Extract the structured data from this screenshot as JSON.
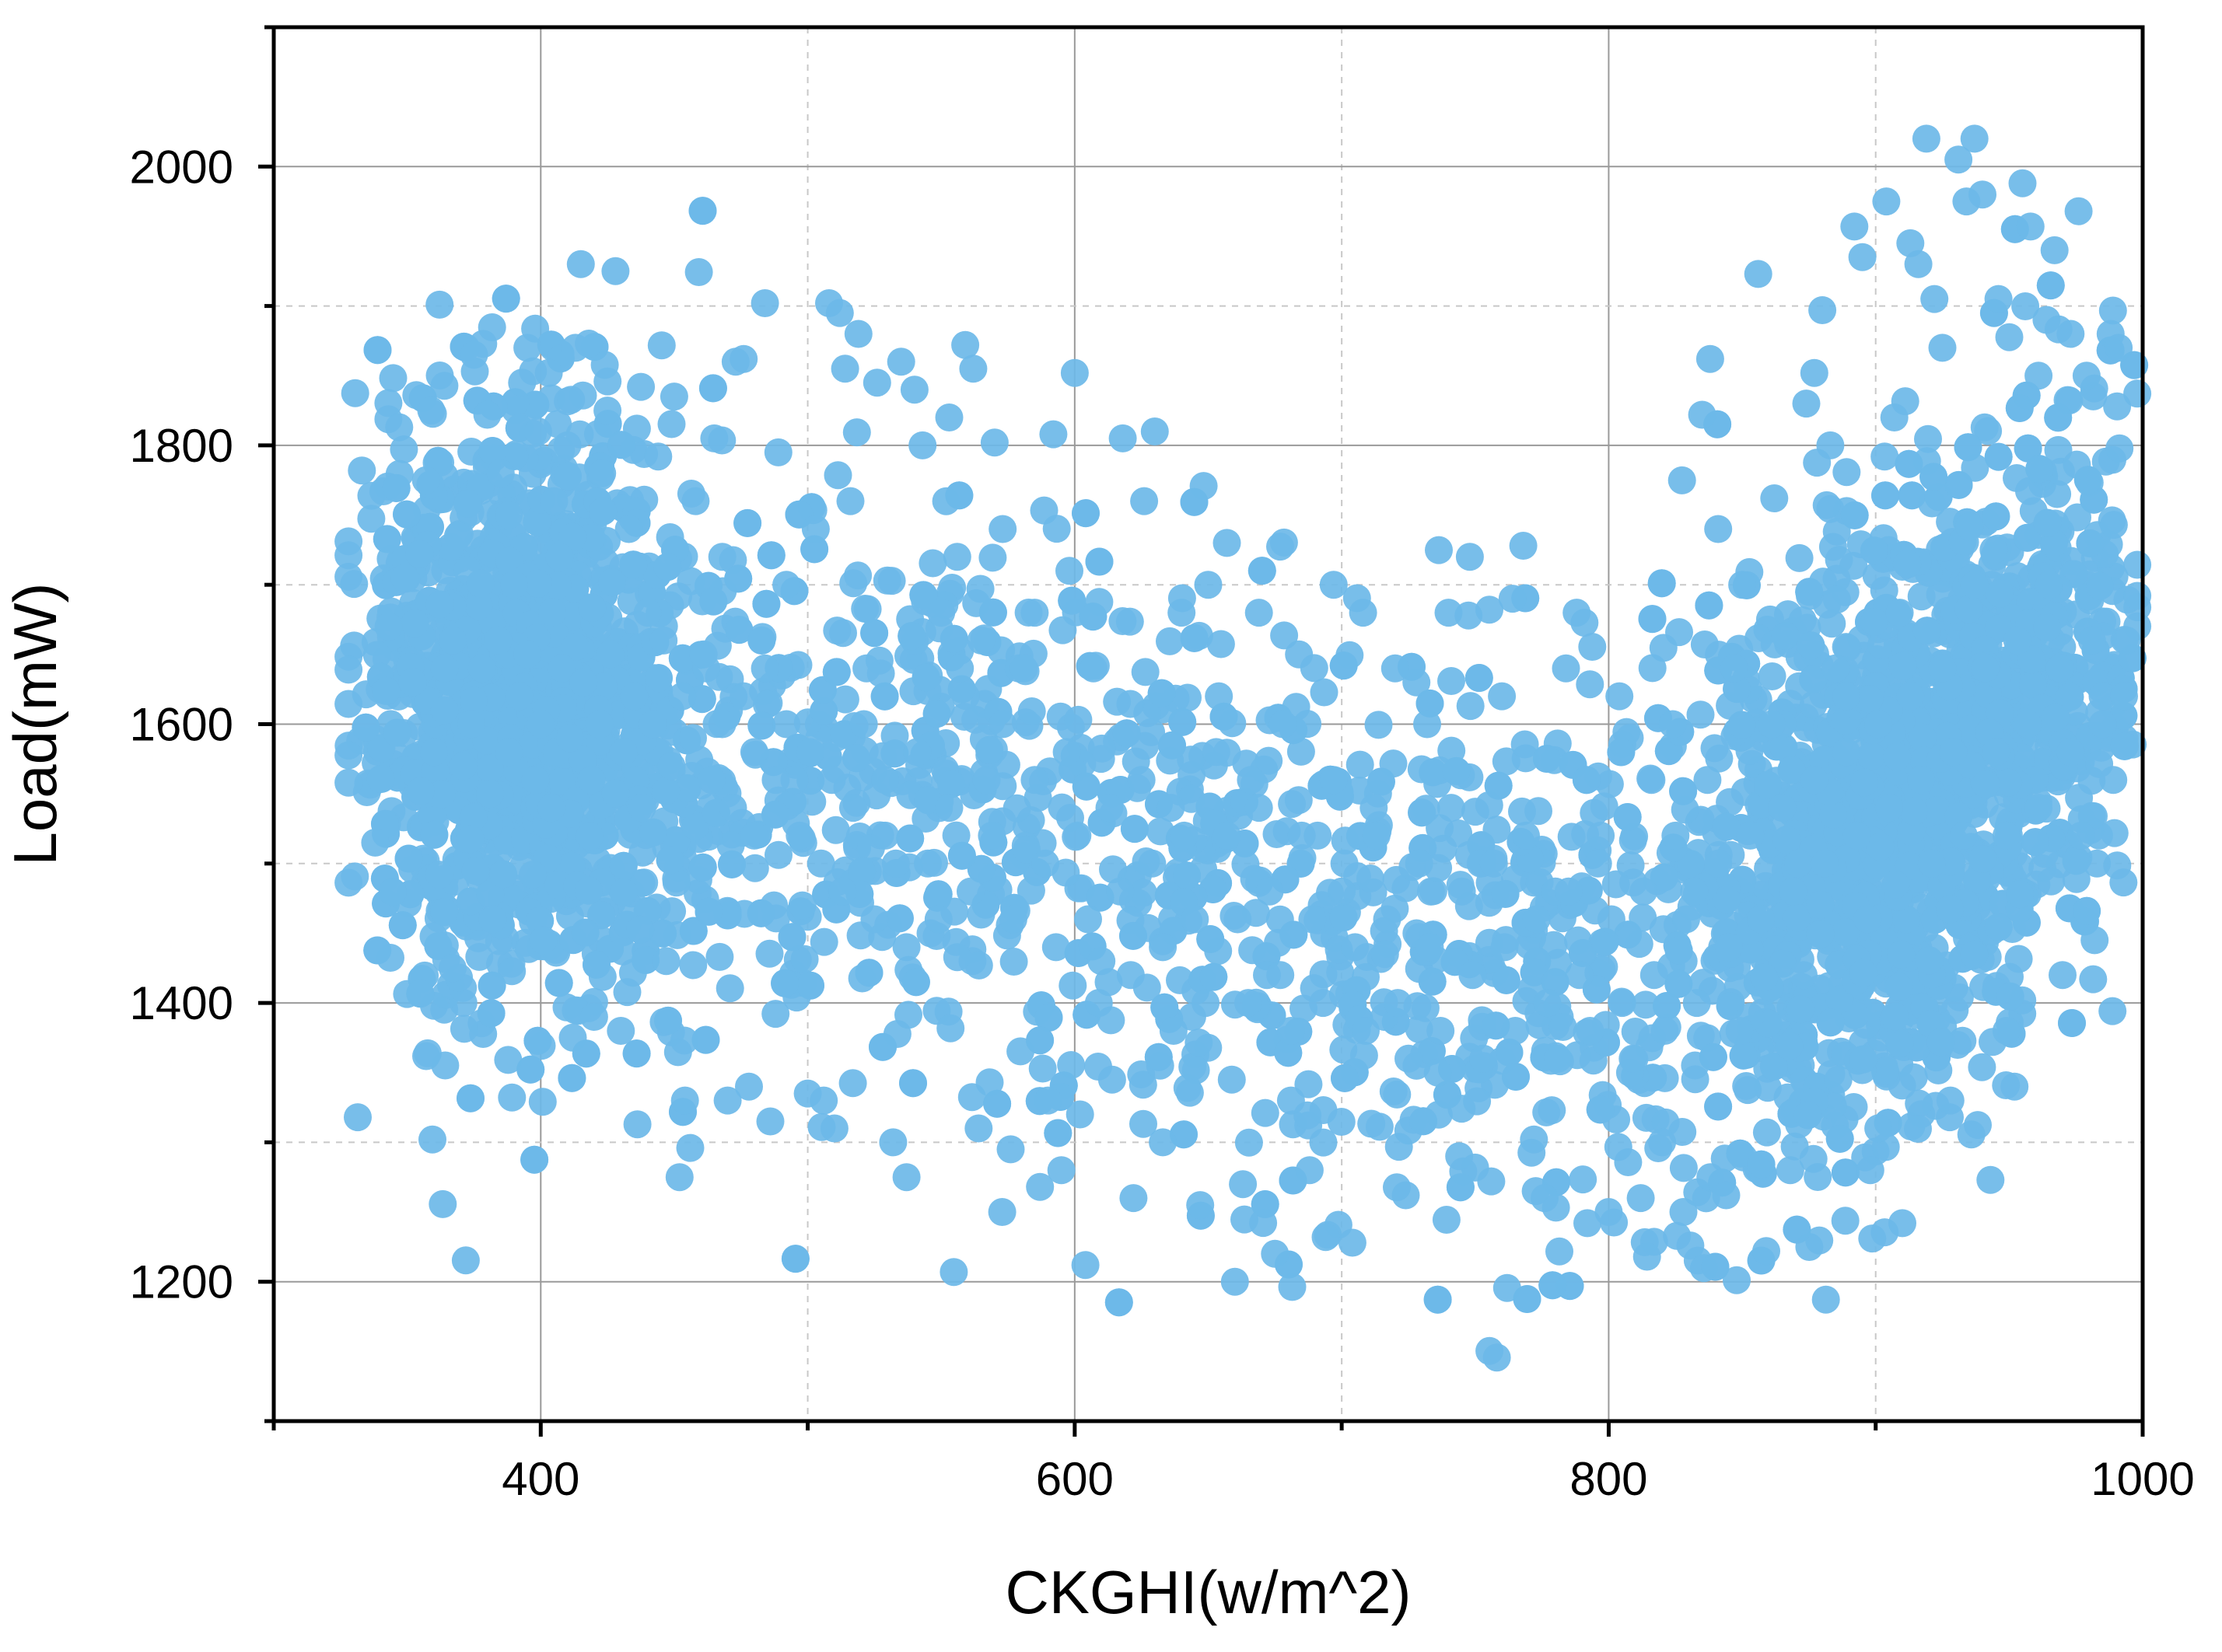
{
  "chart_data": {
    "type": "scatter",
    "title": "",
    "xlabel": "CKGHI(w/m^2)",
    "ylabel": "Load(mW)",
    "xlim": [
      300,
      1000
    ],
    "ylim": [
      1100,
      2100
    ],
    "x_ticks": [
      400,
      600,
      800,
      1000
    ],
    "x_tick_labels": [
      "400",
      "600",
      "800",
      "1000"
    ],
    "x_minor_ticks": [
      300,
      500,
      700,
      900
    ],
    "y_ticks": [
      1200,
      1400,
      1600,
      1800,
      2000
    ],
    "y_tick_labels": [
      "1200",
      "1400",
      "1600",
      "1800",
      "2000"
    ],
    "y_minor_ticks": [
      1300,
      1500,
      1700,
      1900
    ],
    "grid": true,
    "legend": "none",
    "marker_color": "#6cb8e8",
    "approx_point_count": 5000,
    "distribution": "U-shaped: dense cluster near x 380-420 at load ~1600, dip to ~1400-1500 between x 650-800, dense cluster near x 880-960 at load ~1500-1650",
    "points": [
      [
        328,
        1558
      ],
      [
        333,
        1782
      ],
      [
        338,
        1515
      ],
      [
        343,
        1670
      ],
      [
        347,
        1813
      ],
      [
        349,
        1705
      ],
      [
        352,
        1630
      ],
      [
        355,
        1552
      ],
      [
        357,
        1775
      ],
      [
        359,
        1825
      ],
      [
        362,
        1492
      ],
      [
        364,
        1640
      ],
      [
        367,
        1425
      ],
      [
        369,
        1735
      ],
      [
        372,
        1870
      ],
      [
        375,
        1865
      ],
      [
        377,
        1433
      ],
      [
        380,
        1822
      ],
      [
        382,
        1460
      ],
      [
        385,
        1780
      ],
      [
        388,
        1750
      ],
      [
        390,
        1700
      ],
      [
        393,
        1845
      ],
      [
        395,
        1870
      ],
      [
        397,
        1492
      ],
      [
        399,
        1810
      ],
      [
        401,
        1445
      ],
      [
        403,
        1852
      ],
      [
        405,
        1760
      ],
      [
        407,
        1720
      ],
      [
        410,
        1800
      ],
      [
        413,
        1870
      ],
      [
        415,
        1930
      ],
      [
        418,
        1873
      ],
      [
        420,
        1390
      ],
      [
        423,
        1780
      ],
      [
        425,
        1825
      ],
      [
        428,
        1925
      ],
      [
        430,
        1380
      ],
      [
        433,
        1740
      ],
      [
        436,
        1812
      ],
      [
        440,
        1680
      ],
      [
        444,
        1792
      ],
      [
        447,
        1430
      ],
      [
        450,
        1835
      ],
      [
        452,
        1275
      ],
      [
        454,
        1330
      ],
      [
        456,
        1296
      ],
      [
        458,
        1760
      ],
      [
        462,
        1640
      ],
      [
        465,
        1805
      ],
      [
        468,
        1720
      ],
      [
        470,
        1330
      ],
      [
        473,
        1860
      ],
      [
        476,
        1862
      ],
      [
        478,
        1340
      ],
      [
        480,
        1520
      ],
      [
        484,
        1902
      ],
      [
        486,
        1315
      ],
      [
        489,
        1795
      ],
      [
        492,
        1700
      ],
      [
        495,
        1560
      ],
      [
        498,
        1470
      ],
      [
        500,
        1335
      ],
      [
        503,
        1740
      ],
      [
        506,
        1330
      ],
      [
        508,
        1902
      ],
      [
        510,
        1310
      ],
      [
        512,
        1895
      ],
      [
        514,
        1855
      ],
      [
        516,
        1760
      ],
      [
        519,
        1880
      ],
      [
        522,
        1640
      ],
      [
        526,
        1845
      ],
      [
        529,
        1520
      ],
      [
        532,
        1300
      ],
      [
        535,
        1860
      ],
      [
        537,
        1275
      ],
      [
        540,
        1840
      ],
      [
        543,
        1800
      ],
      [
        546,
        1450
      ],
      [
        550,
        1680
      ],
      [
        553,
        1820
      ],
      [
        556,
        1720
      ],
      [
        559,
        1872
      ],
      [
        562,
        1855
      ],
      [
        564,
        1310
      ],
      [
        567,
        1560
      ],
      [
        570,
        1802
      ],
      [
        573,
        1740
      ],
      [
        576,
        1295
      ],
      [
        579,
        1640
      ],
      [
        582,
        1510
      ],
      [
        585,
        1680
      ],
      [
        587,
        1268
      ],
      [
        590,
        1330
      ],
      [
        592,
        1808
      ],
      [
        595,
        1280
      ],
      [
        598,
        1710
      ],
      [
        600,
        1852
      ],
      [
        602,
        1320
      ],
      [
        604,
        1212
      ],
      [
        607,
        1640
      ],
      [
        610,
        1430
      ],
      [
        614,
        1345
      ],
      [
        618,
        1805
      ],
      [
        622,
        1260
      ],
      [
        626,
        1760
      ],
      [
        630,
        1810
      ],
      [
        633,
        1300
      ],
      [
        636,
        1540
      ],
      [
        640,
        1680
      ],
      [
        644,
        1390
      ],
      [
        647,
        1255
      ],
      [
        650,
        1700
      ],
      [
        654,
        1620
      ],
      [
        657,
        1730
      ],
      [
        660,
        1200
      ],
      [
        663,
        1270
      ],
      [
        666,
        1560
      ],
      [
        669,
        1680
      ],
      [
        672,
        1420
      ],
      [
        675,
        1220
      ],
      [
        678,
        1600
      ],
      [
        681,
        1330
      ],
      [
        684,
        1650
      ],
      [
        688,
        1280
      ],
      [
        691,
        1520
      ],
      [
        694,
        1232
      ],
      [
        697,
        1700
      ],
      [
        700,
        1480
      ],
      [
        704,
        1228
      ],
      [
        708,
        1680
      ],
      [
        712,
        1540
      ],
      [
        716,
        1390
      ],
      [
        720,
        1640
      ],
      [
        724,
        1262
      ],
      [
        728,
        1450
      ],
      [
        732,
        1600
      ],
      [
        736,
        1350
      ],
      [
        740,
        1680
      ],
      [
        744,
        1290
      ],
      [
        748,
        1720
      ],
      [
        752,
        1500
      ],
      [
        756,
        1272
      ],
      [
        760,
        1620
      ],
      [
        764,
        1690
      ],
      [
        768,
        1728
      ],
      [
        772,
        1302
      ],
      [
        776,
        1260
      ],
      [
        780,
        1480
      ],
      [
        784,
        1640
      ],
      [
        788,
        1680
      ],
      [
        792,
        1242
      ],
      [
        796,
        1500
      ],
      [
        800,
        1250
      ],
      [
        804,
        1620
      ],
      [
        808,
        1350
      ],
      [
        812,
        1260
      ],
      [
        816,
        1560
      ],
      [
        820,
        1300
      ],
      [
        824,
        1600
      ],
      [
        828,
        1250
      ],
      [
        832,
        1480
      ],
      [
        835,
        1822
      ],
      [
        838,
        1862
      ],
      [
        841,
        1740
      ],
      [
        844,
        1262
      ],
      [
        847,
        1640
      ],
      [
        850,
        1700
      ],
      [
        853,
        1390
      ],
      [
        856,
        1923
      ],
      [
        859,
        1222
      ],
      [
        862,
        1762
      ],
      [
        865,
        1600
      ],
      [
        868,
        1280
      ],
      [
        871,
        1500
      ],
      [
        874,
        1830
      ],
      [
        877,
        1852
      ],
      [
        880,
        1897
      ],
      [
        883,
        1800
      ],
      [
        886,
        1345
      ],
      [
        889,
        1620
      ],
      [
        892,
        1957
      ],
      [
        895,
        1935
      ],
      [
        898,
        1280
      ],
      [
        901,
        1310
      ],
      [
        904,
        1975
      ],
      [
        907,
        1820
      ],
      [
        910,
        1242
      ],
      [
        913,
        1945
      ],
      [
        916,
        1930
      ],
      [
        919,
        2020
      ],
      [
        922,
        1905
      ],
      [
        925,
        1870
      ],
      [
        928,
        1330
      ],
      [
        931,
        2005
      ],
      [
        934,
        1975
      ],
      [
        937,
        2020
      ],
      [
        940,
        1980
      ],
      [
        943,
        1273
      ],
      [
        946,
        1905
      ],
      [
        949,
        1380
      ],
      [
        952,
        1340
      ],
      [
        955,
        1988
      ],
      [
        958,
        1957
      ],
      [
        961,
        1850
      ],
      [
        964,
        1890
      ],
      [
        967,
        1940
      ],
      [
        970,
        1420
      ],
      [
        973,
        1880
      ],
      [
        976,
        1968
      ],
      [
        979,
        1850
      ],
      [
        982,
        1445
      ],
      [
        985,
        1620
      ],
      [
        988,
        1880
      ],
      [
        991,
        1870
      ],
      [
        994,
        1660
      ],
      [
        998,
        1692
      ],
      [
        395,
        1650
      ],
      [
        398,
        1560
      ],
      [
        402,
        1610
      ],
      [
        406,
        1580
      ],
      [
        408,
        1640
      ],
      [
        411,
        1590
      ],
      [
        400,
        1600
      ],
      [
        404,
        1540
      ],
      [
        392,
        1620
      ],
      [
        388,
        1580
      ],
      [
        384,
        1660
      ],
      [
        381,
        1550
      ],
      [
        378,
        1640
      ],
      [
        374,
        1600
      ],
      [
        371,
        1570
      ],
      [
        367,
        1660
      ],
      [
        364,
        1610
      ],
      [
        360,
        1580
      ],
      [
        416,
        1630
      ],
      [
        419,
        1560
      ],
      [
        422,
        1600
      ],
      [
        426,
        1650
      ],
      [
        431,
        1580
      ],
      [
        435,
        1620
      ],
      [
        438,
        1540
      ],
      [
        442,
        1600
      ],
      [
        446,
        1660
      ],
      [
        449,
        1570
      ],
      [
        453,
        1620
      ],
      [
        457,
        1590
      ],
      [
        461,
        1650
      ],
      [
        464,
        1560
      ],
      [
        468,
        1600
      ],
      [
        472,
        1540
      ],
      [
        476,
        1620
      ],
      [
        480,
        1580
      ],
      [
        484,
        1640
      ],
      [
        488,
        1560
      ],
      [
        492,
        1600
      ],
      [
        497,
        1520
      ],
      [
        501,
        1580
      ],
      [
        505,
        1500
      ],
      [
        509,
        1560
      ],
      [
        513,
        1480
      ],
      [
        517,
        1540
      ],
      [
        521,
        1600
      ],
      [
        525,
        1460
      ],
      [
        529,
        1560
      ],
      [
        533,
        1500
      ],
      [
        537,
        1440
      ],
      [
        541,
        1580
      ],
      [
        545,
        1500
      ],
      [
        549,
        1460
      ],
      [
        553,
        1540
      ],
      [
        557,
        1640
      ],
      [
        561,
        1480
      ],
      [
        565,
        1660
      ],
      [
        569,
        1520
      ],
      [
        573,
        1600
      ],
      [
        577,
        1460
      ],
      [
        581,
        1640
      ],
      [
        585,
        1560
      ],
      [
        589,
        1500
      ],
      [
        593,
        1440
      ],
      [
        597,
        1580
      ],
      [
        601,
        1520
      ],
      [
        605,
        1460
      ],
      [
        609,
        1400
      ],
      [
        613,
        1540
      ],
      [
        617,
        1480
      ],
      [
        621,
        1420
      ],
      [
        625,
        1560
      ],
      [
        629,
        1500
      ],
      [
        633,
        1440
      ],
      [
        637,
        1380
      ],
      [
        641,
        1520
      ],
      [
        645,
        1460
      ],
      [
        649,
        1400
      ],
      [
        653,
        1580
      ],
      [
        657,
        1520
      ],
      [
        661,
        1460
      ],
      [
        665,
        1400
      ],
      [
        669,
        1540
      ],
      [
        673,
        1480
      ],
      [
        677,
        1420
      ],
      [
        681,
        1380
      ],
      [
        685,
        1520
      ],
      [
        689,
        1460
      ],
      [
        693,
        1400
      ],
      [
        697,
        1560
      ],
      [
        701,
        1500
      ],
      [
        705,
        1440
      ],
      [
        709,
        1380
      ],
      [
        713,
        1520
      ],
      [
        717,
        1460
      ],
      [
        721,
        1400
      ],
      [
        725,
        1360
      ],
      [
        729,
        1500
      ],
      [
        733,
        1440
      ],
      [
        737,
        1380
      ],
      [
        741,
        1540
      ],
      [
        745,
        1480
      ],
      [
        749,
        1420
      ],
      [
        753,
        1360
      ],
      [
        757,
        1500
      ],
      [
        761,
        1440
      ],
      [
        765,
        1380
      ],
      [
        769,
        1520
      ],
      [
        773,
        1460
      ],
      [
        777,
        1400
      ],
      [
        781,
        1360
      ],
      [
        785,
        1480
      ],
      [
        789,
        1420
      ],
      [
        793,
        1380
      ],
      [
        797,
        1520
      ],
      [
        801,
        1460
      ],
      [
        805,
        1400
      ],
      [
        809,
        1360
      ],
      [
        813,
        1480
      ],
      [
        817,
        1420
      ],
      [
        821,
        1380
      ],
      [
        825,
        1520
      ],
      [
        829,
        1460
      ],
      [
        833,
        1400
      ],
      [
        837,
        1560
      ],
      [
        841,
        1500
      ],
      [
        845,
        1440
      ],
      [
        849,
        1380
      ],
      [
        853,
        1520
      ],
      [
        857,
        1460
      ],
      [
        861,
        1600
      ],
      [
        865,
        1540
      ],
      [
        869,
        1480
      ],
      [
        873,
        1420
      ],
      [
        877,
        1560
      ],
      [
        881,
        1500
      ],
      [
        885,
        1640
      ],
      [
        889,
        1580
      ],
      [
        893,
        1520
      ],
      [
        897,
        1460
      ],
      [
        901,
        1600
      ],
      [
        905,
        1540
      ],
      [
        909,
        1680
      ],
      [
        913,
        1620
      ],
      [
        917,
        1560
      ],
      [
        921,
        1500
      ],
      [
        925,
        1640
      ],
      [
        929,
        1580
      ],
      [
        933,
        1520
      ],
      [
        937,
        1700
      ],
      [
        941,
        1640
      ],
      [
        945,
        1580
      ],
      [
        949,
        1520
      ],
      [
        953,
        1660
      ],
      [
        957,
        1600
      ],
      [
        961,
        1540
      ],
      [
        965,
        1700
      ],
      [
        969,
        1640
      ],
      [
        973,
        1580
      ],
      [
        977,
        1520
      ],
      [
        981,
        1660
      ],
      [
        985,
        1600
      ],
      [
        989,
        1560
      ],
      [
        993,
        1620
      ]
    ]
  }
}
